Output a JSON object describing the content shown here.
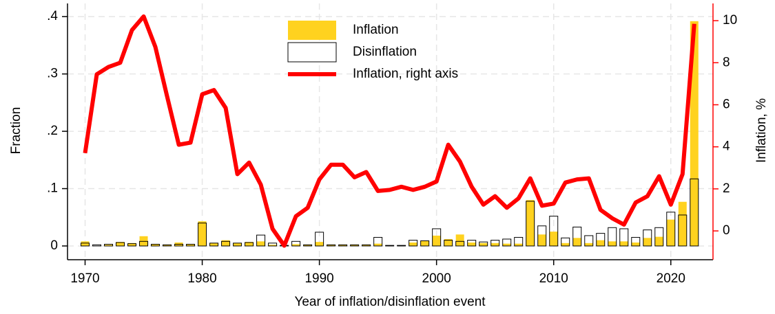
{
  "chart_data": {
    "type": "bar",
    "x_label": "Year of inflation/disinflation event",
    "y_label": "Fraction",
    "y2_label": "Inflation, %",
    "y2_color": "#ff0000",
    "x": [
      1970,
      1971,
      1972,
      1973,
      1974,
      1975,
      1976,
      1977,
      1978,
      1979,
      1980,
      1981,
      1982,
      1983,
      1984,
      1985,
      1986,
      1987,
      1988,
      1989,
      1990,
      1991,
      1992,
      1993,
      1994,
      1995,
      1996,
      1997,
      1998,
      1999,
      2000,
      2001,
      2002,
      2003,
      2004,
      2005,
      2006,
      2007,
      2008,
      2009,
      2010,
      2011,
      2012,
      2013,
      2014,
      2015,
      2016,
      2017,
      2018,
      2019,
      2020,
      2021,
      2022
    ],
    "xlim": [
      1968.5,
      2023.6
    ],
    "xticks": [
      1970,
      1980,
      1990,
      2000,
      2010,
      2020
    ],
    "ylim": [
      -0.024,
      0.423
    ],
    "yticks": [
      0,
      {
        "value": 0.1,
        "label": ".1"
      },
      {
        "value": 0.2,
        "label": ".2"
      },
      {
        "value": 0.3,
        "label": ".3"
      },
      {
        "value": 0.4,
        "label": ".4"
      }
    ],
    "y2lim": [
      -1.37,
      10.82
    ],
    "y2ticks": [
      0,
      2,
      4,
      6,
      8,
      10
    ],
    "grid": true,
    "legend": "top",
    "series": [
      {
        "name": "Inflation",
        "type": "bar",
        "color": "#ffd21f",
        "values": [
          0.008,
          0,
          0.002,
          0.007,
          0.005,
          0.017,
          0.003,
          0.002,
          0.006,
          0.003,
          0.043,
          0.005,
          0.01,
          0.005,
          0.007,
          0.008,
          0.002,
          0.001,
          0.003,
          0.002,
          0.007,
          0.002,
          0.002,
          0.002,
          0.002,
          0.004,
          0.001,
          0.001,
          0.006,
          0.009,
          0.018,
          0.012,
          0.02,
          0.006,
          0.005,
          0.005,
          0.004,
          0.004,
          0.08,
          0.02,
          0.025,
          0.005,
          0.014,
          0.005,
          0.01,
          0.008,
          0.008,
          0.006,
          0.014,
          0.016,
          0.046,
          0.077,
          0.392
        ]
      },
      {
        "name": "Disinflation",
        "type": "bar-outline",
        "color": "#000000",
        "values": [
          0.005,
          0.002,
          0.003,
          0.006,
          0.004,
          0.008,
          0.003,
          0.002,
          0.003,
          0.003,
          0.04,
          0.005,
          0.008,
          0.005,
          0.006,
          0.019,
          0.005,
          0.001,
          0.008,
          0.002,
          0.024,
          0.002,
          0.002,
          0.002,
          0.002,
          0.015,
          0.001,
          0.001,
          0.01,
          0.009,
          0.03,
          0.01,
          0.008,
          0.01,
          0.007,
          0.01,
          0.012,
          0.015,
          0.078,
          0.035,
          0.052,
          0.014,
          0.033,
          0.018,
          0.022,
          0.032,
          0.03,
          0.015,
          0.028,
          0.032,
          0.059,
          0.054,
          0.117
        ]
      },
      {
        "name": "Inflation, right axis",
        "type": "line",
        "axis": "y2",
        "color": "#ff0000",
        "values": [
          3.7,
          7.45,
          7.8,
          8.0,
          9.55,
          10.2,
          8.75,
          6.4,
          4.1,
          4.2,
          6.5,
          6.7,
          5.85,
          2.7,
          3.25,
          2.2,
          0.1,
          -0.7,
          0.7,
          1.1,
          2.45,
          3.15,
          3.15,
          2.55,
          2.8,
          1.9,
          1.95,
          2.1,
          1.95,
          2.1,
          2.35,
          4.1,
          3.3,
          2.1,
          1.25,
          1.65,
          1.1,
          1.55,
          2.5,
          1.2,
          1.3,
          2.3,
          2.45,
          2.5,
          1.0,
          0.6,
          0.3,
          1.35,
          1.65,
          2.6,
          1.25,
          2.7,
          9.85
        ]
      }
    ]
  }
}
